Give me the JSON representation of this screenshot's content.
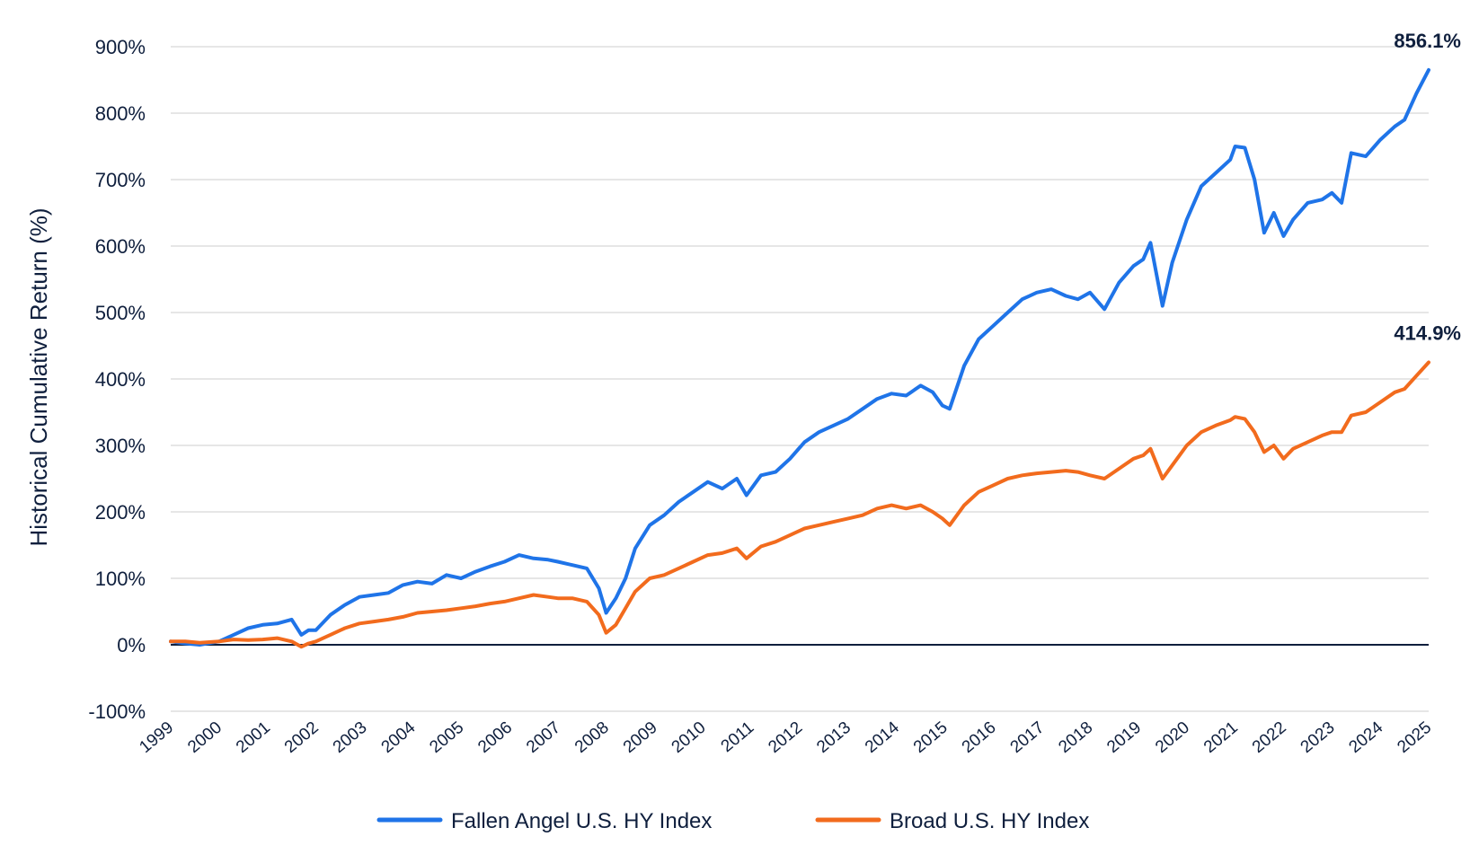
{
  "chart_data": {
    "type": "line",
    "ylabel": "Historical Cumulative Return (%)",
    "ylim": [
      -100,
      900
    ],
    "yticks": [
      -100,
      0,
      100,
      200,
      300,
      400,
      500,
      600,
      700,
      800,
      900
    ],
    "ytick_labels": [
      "-100%",
      "0%",
      "100%",
      "200%",
      "300%",
      "400%",
      "500%",
      "600%",
      "700%",
      "800%",
      "900%"
    ],
    "xlim": [
      1999,
      2025
    ],
    "xticks": [
      "1999",
      "2000",
      "2001",
      "2002",
      "2003",
      "2004",
      "2005",
      "2006",
      "2007",
      "2008",
      "2009",
      "2010",
      "2011",
      "2012",
      "2013",
      "2014",
      "2015",
      "2016",
      "2017",
      "2018",
      "2019",
      "2020",
      "2021",
      "2022",
      "2023",
      "2024",
      "2025"
    ],
    "grid": true,
    "legend_position": "bottom-center",
    "annotations": [
      {
        "series": "Fallen Angel U.S. HY Index",
        "text": "856.1%"
      },
      {
        "series": "Broad U.S. HY Index",
        "text": "414.9%"
      }
    ],
    "colors": {
      "fallen_angel": "#1f74e8",
      "broad": "#f26b1d",
      "gridline": "#d7d7d7",
      "zero_line": "#0f1f3d",
      "text": "#0f1f3d"
    },
    "series": [
      {
        "name": "Fallen Angel U.S. HY Index",
        "x": [
          1999.0,
          1999.3,
          1999.6,
          2000.0,
          2000.3,
          2000.6,
          2000.9,
          2001.2,
          2001.5,
          2001.7,
          2001.85,
          2002.0,
          2002.3,
          2002.6,
          2002.9,
          2003.2,
          2003.5,
          2003.8,
          2004.1,
          2004.4,
          2004.7,
          2005.0,
          2005.3,
          2005.6,
          2005.9,
          2006.2,
          2006.5,
          2006.8,
          2007.0,
          2007.3,
          2007.6,
          2007.85,
          2008.0,
          2008.2,
          2008.4,
          2008.6,
          2008.9,
          2009.2,
          2009.5,
          2009.8,
          2010.1,
          2010.4,
          2010.7,
          2010.9,
          2011.2,
          2011.5,
          2011.8,
          2012.1,
          2012.4,
          2012.7,
          2013.0,
          2013.3,
          2013.6,
          2013.9,
          2014.2,
          2014.5,
          2014.75,
          2014.95,
          2015.1,
          2015.4,
          2015.7,
          2016.0,
          2016.3,
          2016.6,
          2016.9,
          2017.2,
          2017.5,
          2017.75,
          2018.0,
          2018.3,
          2018.6,
          2018.9,
          2019.1,
          2019.25,
          2019.5,
          2019.7,
          2020.0,
          2020.3,
          2020.6,
          2020.9,
          2021.0,
          2021.2,
          2021.4,
          2021.6,
          2021.8,
          2022.0,
          2022.2,
          2022.5,
          2022.8,
          2023.0,
          2023.2,
          2023.4,
          2023.7,
          2024.0,
          2024.3,
          2024.5,
          2024.75,
          2025.0
        ],
        "y": [
          5,
          2,
          0,
          5,
          15,
          25,
          30,
          32,
          38,
          15,
          22,
          22,
          45,
          60,
          72,
          75,
          78,
          90,
          95,
          92,
          105,
          100,
          110,
          118,
          125,
          135,
          130,
          128,
          125,
          120,
          115,
          85,
          48,
          70,
          100,
          145,
          180,
          195,
          215,
          230,
          245,
          235,
          250,
          225,
          255,
          260,
          280,
          305,
          320,
          330,
          340,
          355,
          370,
          378,
          375,
          390,
          380,
          360,
          355,
          420,
          460,
          480,
          500,
          520,
          530,
          535,
          525,
          520,
          530,
          505,
          545,
          570,
          580,
          605,
          510,
          575,
          640,
          690,
          710,
          730,
          750,
          748,
          700,
          620,
          650,
          615,
          640,
          665,
          670,
          680,
          665,
          740,
          735,
          760,
          780,
          790,
          830,
          865
        ]
      },
      {
        "name": "Broad U.S. HY Index",
        "x": [
          1999.0,
          1999.3,
          1999.6,
          2000.0,
          2000.3,
          2000.6,
          2000.9,
          2001.2,
          2001.5,
          2001.7,
          2001.85,
          2002.0,
          2002.3,
          2002.6,
          2002.9,
          2003.2,
          2003.5,
          2003.8,
          2004.1,
          2004.4,
          2004.7,
          2005.0,
          2005.3,
          2005.6,
          2005.9,
          2006.2,
          2006.5,
          2006.8,
          2007.0,
          2007.3,
          2007.6,
          2007.85,
          2008.0,
          2008.2,
          2008.4,
          2008.6,
          2008.9,
          2009.2,
          2009.5,
          2009.8,
          2010.1,
          2010.4,
          2010.7,
          2010.9,
          2011.2,
          2011.5,
          2011.8,
          2012.1,
          2012.4,
          2012.7,
          2013.0,
          2013.3,
          2013.6,
          2013.9,
          2014.2,
          2014.5,
          2014.75,
          2014.95,
          2015.1,
          2015.4,
          2015.7,
          2016.0,
          2016.3,
          2016.6,
          2016.9,
          2017.2,
          2017.5,
          2017.75,
          2018.0,
          2018.3,
          2018.6,
          2018.9,
          2019.1,
          2019.25,
          2019.5,
          2019.7,
          2020.0,
          2020.3,
          2020.6,
          2020.9,
          2021.0,
          2021.2,
          2021.4,
          2021.6,
          2021.8,
          2022.0,
          2022.2,
          2022.5,
          2022.8,
          2023.0,
          2023.2,
          2023.4,
          2023.7,
          2024.0,
          2024.3,
          2024.5,
          2024.75,
          2025.0
        ],
        "y": [
          5,
          5,
          3,
          5,
          8,
          7,
          8,
          10,
          5,
          -3,
          2,
          5,
          15,
          25,
          32,
          35,
          38,
          42,
          48,
          50,
          52,
          55,
          58,
          62,
          65,
          70,
          75,
          72,
          70,
          70,
          65,
          45,
          18,
          30,
          55,
          80,
          100,
          105,
          115,
          125,
          135,
          138,
          145,
          130,
          148,
          155,
          165,
          175,
          180,
          185,
          190,
          195,
          205,
          210,
          205,
          210,
          200,
          190,
          180,
          210,
          230,
          240,
          250,
          255,
          258,
          260,
          262,
          260,
          255,
          250,
          265,
          280,
          285,
          295,
          250,
          270,
          300,
          320,
          330,
          338,
          343,
          340,
          320,
          290,
          300,
          280,
          295,
          305,
          315,
          320,
          320,
          345,
          350,
          365,
          380,
          385,
          405,
          425
        ]
      }
    ]
  }
}
